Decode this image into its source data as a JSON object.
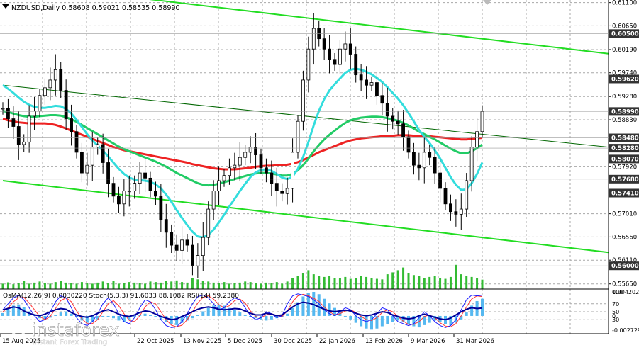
{
  "header": {
    "symbol_line": "NZDUSD,Daily  0.58608 0.59021 0.58535 0.58990"
  },
  "indicator_header": "OsMA(12,26,9) 0.0030220  Stoch(5,3,3) 91.6033 88.1082  RSI(14) 59.2380",
  "watermark": {
    "brand": "instaforex",
    "tagline": "Instant Forex Trading"
  },
  "price_scale": {
    "labels": [
      "0.61100",
      "0.60650",
      "0.60190",
      "0.59740",
      "0.59280",
      "0.58830",
      "0.57920",
      "0.57010",
      "0.56560",
      "0.56110",
      "0.55650"
    ]
  },
  "price_tags": [
    {
      "text": "0.60500",
      "style": "dark"
    },
    {
      "text": "0.59620",
      "style": "dark"
    },
    {
      "text": "0.58990",
      "style": "dark"
    },
    {
      "text": "0.58480",
      "style": "dark"
    },
    {
      "text": "0.58280",
      "style": "dark"
    },
    {
      "text": "0.58070",
      "style": "dark"
    },
    {
      "text": "0.57680",
      "style": "dark"
    },
    {
      "text": "0.57410",
      "style": "dark"
    },
    {
      "text": "0.56000",
      "style": "dark"
    }
  ],
  "indicator_scale": {
    "labels": [
      "0.004202",
      "100",
      "70",
      "50",
      "30",
      "0",
      "-0.002729"
    ]
  },
  "time_axis": {
    "labels": [
      "15 Aug 2025",
      "22 Oct 2025",
      "13 Nov 2025",
      "5 Dec 2025",
      "30 Dec 2025",
      "22 Jan 2026",
      "13 Feb 2026",
      "9 Mar 2026",
      "31 Mar 2026"
    ]
  },
  "chart_data": {
    "type": "candlestick",
    "symbol": "NZDUSD",
    "timeframe": "Daily",
    "ohlc_last": {
      "open": 0.58608,
      "high": 0.59021,
      "low": 0.58535,
      "close": 0.5899
    },
    "y_range": [
      0.5555,
      0.6115
    ],
    "closes": [
      0.5905,
      0.5885,
      0.587,
      0.5835,
      0.584,
      0.589,
      0.59,
      0.593,
      0.5945,
      0.596,
      0.598,
      0.594,
      0.5885,
      0.586,
      0.582,
      0.578,
      0.5795,
      0.583,
      0.5835,
      0.58,
      0.576,
      0.5735,
      0.572,
      0.5745,
      0.5745,
      0.576,
      0.578,
      0.577,
      0.5745,
      0.5735,
      0.569,
      0.5665,
      0.564,
      0.563,
      0.565,
      0.564,
      0.56,
      0.562,
      0.5655,
      0.571,
      0.5745,
      0.5765,
      0.5775,
      0.579,
      0.5795,
      0.581,
      0.582,
      0.583,
      0.5815,
      0.579,
      0.578,
      0.576,
      0.5745,
      0.574,
      0.575,
      0.582,
      0.588,
      0.596,
      0.602,
      0.606,
      0.604,
      0.602,
      0.6,
      0.599,
      0.602,
      0.603,
      0.601,
      0.597,
      0.596,
      0.595,
      0.5955,
      0.593,
      0.5915,
      0.589,
      0.588,
      0.5875,
      0.585,
      0.582,
      0.5795,
      0.579,
      0.582,
      0.581,
      0.578,
      0.575,
      0.572,
      0.5705,
      0.57,
      0.571,
      0.5765,
      0.583,
      0.586,
      0.5899
    ],
    "moving_averages": [
      {
        "color": "#ee2222",
        "values": [
          0.5885,
          0.5882,
          0.588,
          0.5878,
          0.5877,
          0.5876,
          0.5876,
          0.5876,
          0.5876,
          0.5875,
          0.5873,
          0.587,
          0.5866,
          0.5862,
          0.5858,
          0.5854,
          0.585,
          0.5846,
          0.5842,
          0.5838,
          0.5834,
          0.583,
          0.5827,
          0.5824,
          0.5822,
          0.582,
          0.5818,
          0.5816,
          0.5814,
          0.5812,
          0.581,
          0.5808,
          0.5806,
          0.5804,
          0.5802,
          0.58,
          0.5797,
          0.5795,
          0.5793,
          0.5791,
          0.5789,
          0.5788,
          0.5787,
          0.5787,
          0.5787,
          0.5788,
          0.5789,
          0.579,
          0.5792,
          0.5793,
          0.5794,
          0.5794,
          0.5795,
          0.5795,
          0.5796,
          0.5798,
          0.5801,
          0.5805,
          0.581,
          0.5815,
          0.582,
          0.5824,
          0.5828,
          0.5832,
          0.5836,
          0.584,
          0.5843,
          0.5845,
          0.5847,
          0.5848,
          0.5849,
          0.585,
          0.5851,
          0.5852,
          0.5852,
          0.5853,
          0.5853,
          0.5853,
          0.5852,
          0.5852,
          0.5852,
          0.5851,
          0.585,
          0.5849,
          0.5848,
          0.5847,
          0.5846,
          0.5845,
          0.5845,
          0.5846,
          0.5847,
          0.5848
        ]
      },
      {
        "color": "#22cc66",
        "values": [
          0.59,
          0.5898,
          0.5895,
          0.5892,
          0.589,
          0.5889,
          0.5889,
          0.589,
          0.5891,
          0.5892,
          0.5892,
          0.5891,
          0.5888,
          0.5884,
          0.5879,
          0.5873,
          0.5867,
          0.5861,
          0.5855,
          0.5849,
          0.5843,
          0.5837,
          0.5831,
          0.5826,
          0.5822,
          0.5818,
          0.5814,
          0.581,
          0.5806,
          0.5802,
          0.5797,
          0.5792,
          0.5786,
          0.578,
          0.5775,
          0.577,
          0.5765,
          0.576,
          0.5757,
          0.5756,
          0.5757,
          0.5759,
          0.5762,
          0.5765,
          0.5768,
          0.5771,
          0.5774,
          0.5777,
          0.5779,
          0.578,
          0.578,
          0.5779,
          0.5777,
          0.5775,
          0.5775,
          0.5778,
          0.5785,
          0.5795,
          0.5808,
          0.5822,
          0.5834,
          0.5845,
          0.5854,
          0.5862,
          0.587,
          0.5877,
          0.5882,
          0.5885,
          0.5887,
          0.5888,
          0.5889,
          0.5889,
          0.5888,
          0.5886,
          0.5884,
          0.5881,
          0.5877,
          0.5872,
          0.5866,
          0.586,
          0.5855,
          0.585,
          0.5845,
          0.5839,
          0.5833,
          0.5827,
          0.5822,
          0.5818,
          0.5818,
          0.5822,
          0.5828,
          0.5835
        ]
      },
      {
        "color": "#33dddd",
        "values": [
          0.595,
          0.5943,
          0.5935,
          0.5926,
          0.5918,
          0.5912,
          0.5908,
          0.5906,
          0.5906,
          0.5908,
          0.591,
          0.5909,
          0.5904,
          0.5895,
          0.5883,
          0.5869,
          0.5855,
          0.5843,
          0.5833,
          0.5823,
          0.5812,
          0.58,
          0.5788,
          0.5778,
          0.5771,
          0.5767,
          0.5766,
          0.5765,
          0.5763,
          0.5758,
          0.575,
          0.5738,
          0.5724,
          0.5708,
          0.5693,
          0.5679,
          0.5666,
          0.5657,
          0.5655,
          0.566,
          0.567,
          0.5684,
          0.5699,
          0.5715,
          0.573,
          0.5745,
          0.5759,
          0.5772,
          0.5781,
          0.5786,
          0.5787,
          0.5784,
          0.5778,
          0.5771,
          0.5768,
          0.5773,
          0.5788,
          0.5811,
          0.584,
          0.5872,
          0.59,
          0.5923,
          0.594,
          0.5952,
          0.5963,
          0.5974,
          0.598,
          0.5982,
          0.598,
          0.5976,
          0.5971,
          0.5964,
          0.5956,
          0.5946,
          0.5935,
          0.5924,
          0.5911,
          0.5896,
          0.588,
          0.5863,
          0.585,
          0.5838,
          0.5824,
          0.5808,
          0.579,
          0.5772,
          0.5757,
          0.5747,
          0.5748,
          0.576,
          0.5778,
          0.58
        ]
      }
    ],
    "trend_lines": [
      {
        "color": "#22dd22",
        "from": [
          0,
          0.615
        ],
        "to": [
          91,
          0.604
        ]
      },
      {
        "color": "#22dd22",
        "from": [
          0,
          0.5765
        ],
        "to": [
          91,
          0.5655
        ]
      },
      {
        "color": "#006600",
        "from": [
          0,
          0.595
        ],
        "to": [
          91,
          0.5855
        ]
      }
    ],
    "volume": [
      0.2,
      0.25,
      0.18,
      0.22,
      0.3,
      0.2,
      0.24,
      0.28,
      0.22,
      0.2,
      0.26,
      0.3,
      0.24,
      0.22,
      0.2,
      0.26,
      0.22,
      0.2,
      0.24,
      0.28,
      0.22,
      0.3,
      0.2,
      0.22,
      0.26,
      0.24,
      0.22,
      0.2,
      0.28,
      0.26,
      0.24,
      0.3,
      0.28,
      0.32,
      0.26,
      0.24,
      0.4,
      0.36,
      0.3,
      0.28,
      0.24,
      0.22,
      0.26,
      0.2,
      0.22,
      0.24,
      0.28,
      0.26,
      0.22,
      0.2,
      0.24,
      0.22,
      0.26,
      0.2,
      0.28,
      0.4,
      0.5,
      0.6,
      0.7,
      0.55,
      0.5,
      0.45,
      0.5,
      0.42,
      0.4,
      0.45,
      0.38,
      0.42,
      0.5,
      0.45,
      0.4,
      0.38,
      0.36,
      0.55,
      0.62,
      0.7,
      0.8,
      0.6,
      0.52,
      0.48,
      0.4,
      0.45,
      0.5,
      0.42,
      0.38,
      0.45,
      0.9,
      0.55,
      0.48,
      0.45,
      0.4,
      0.35
    ],
    "osma": [
      0.0005,
      0.0012,
      0.0018,
      0.002,
      0.0015,
      0.0008,
      0.0002,
      -0.0004,
      -0.0006,
      -0.0003,
      0.0002,
      0.0006,
      0.0008,
      0.0004,
      -0.0002,
      -0.0008,
      -0.0012,
      -0.001,
      -0.0006,
      -0.0002,
      0.0,
      -0.0004,
      -0.0008,
      -0.001,
      -0.0006,
      -0.0002,
      0.0002,
      0.0004,
      0.0002,
      -0.0002,
      -0.0006,
      -0.001,
      -0.0014,
      -0.0016,
      -0.0012,
      -0.0008,
      -0.0004,
      0.0002,
      0.0008,
      0.0014,
      0.0018,
      0.002,
      0.0018,
      0.0014,
      0.001,
      0.0006,
      0.0002,
      -0.0002,
      -0.0004,
      -0.0006,
      -0.0008,
      -0.0006,
      -0.0004,
      -0.0002,
      0.0004,
      0.0014,
      0.0024,
      0.0034,
      0.004,
      0.0042,
      0.0038,
      0.003,
      0.0022,
      0.0014,
      0.0006,
      0.0,
      -0.0006,
      -0.0012,
      -0.0018,
      -0.0022,
      -0.0024,
      -0.0022,
      -0.0018,
      -0.0014,
      -0.001,
      -0.0008,
      -0.001,
      -0.0014,
      -0.0018,
      -0.002,
      -0.0016,
      -0.0012,
      -0.0008,
      -0.001,
      -0.0014,
      -0.0016,
      -0.0012,
      -0.0006,
      0.0006,
      0.0018,
      0.0026,
      0.003
    ],
    "stoch_main": [
      55,
      70,
      85,
      92,
      80,
      60,
      40,
      25,
      30,
      50,
      75,
      90,
      85,
      60,
      35,
      20,
      15,
      25,
      45,
      70,
      85,
      70,
      45,
      25,
      20,
      35,
      60,
      80,
      75,
      55,
      30,
      15,
      10,
      12,
      25,
      45,
      70,
      88,
      92,
      85,
      70,
      55,
      60,
      75,
      85,
      80,
      60,
      40,
      30,
      35,
      50,
      45,
      35,
      40,
      70,
      90,
      95,
      92,
      88,
      80,
      70,
      55,
      45,
      40,
      50,
      60,
      55,
      40,
      30,
      25,
      30,
      45,
      60,
      55,
      40,
      25,
      20,
      15,
      20,
      35,
      50,
      40,
      25,
      15,
      10,
      15,
      30,
      55,
      80,
      92,
      90,
      91.6
    ],
    "stoch_signal": [
      50,
      60,
      75,
      85,
      86,
      72,
      55,
      38,
      30,
      38,
      58,
      78,
      85,
      75,
      52,
      32,
      20,
      20,
      30,
      50,
      70,
      78,
      65,
      45,
      28,
      25,
      40,
      62,
      75,
      70,
      50,
      30,
      16,
      12,
      16,
      30,
      50,
      72,
      86,
      90,
      82,
      68,
      60,
      65,
      78,
      82,
      72,
      52,
      38,
      35,
      42,
      45,
      40,
      38,
      52,
      75,
      90,
      94,
      90,
      84,
      76,
      62,
      50,
      42,
      45,
      52,
      55,
      48,
      38,
      30,
      28,
      35,
      48,
      55,
      50,
      38,
      26,
      18,
      18,
      25,
      38,
      42,
      35,
      22,
      14,
      12,
      20,
      40,
      62,
      82,
      90,
      88.1
    ],
    "rsi": [
      55,
      58,
      62,
      60,
      52,
      46,
      42,
      40,
      44,
      50,
      55,
      58,
      56,
      48,
      42,
      38,
      36,
      40,
      46,
      52,
      55,
      50,
      44,
      40,
      38,
      42,
      48,
      52,
      50,
      44,
      38,
      34,
      30,
      32,
      38,
      44,
      50,
      56,
      60,
      62,
      60,
      56,
      55,
      56,
      58,
      57,
      52,
      46,
      42,
      42,
      46,
      44,
      40,
      42,
      52,
      62,
      70,
      74,
      72,
      68,
      62,
      56,
      52,
      50,
      52,
      54,
      52,
      46,
      42,
      40,
      42,
      46,
      50,
      48,
      42,
      38,
      34,
      32,
      34,
      40,
      44,
      40,
      36,
      32,
      30,
      34,
      42,
      50,
      56,
      60,
      58,
      59.2
    ]
  },
  "colors": {
    "grid": "#a8a8a8",
    "candle": "#000000",
    "osma_bars": "#55b8f0",
    "stoch_main": "#1a1aff",
    "stoch_signal": "#ff3333",
    "rsi": "#000099",
    "volume": "#33bb33",
    "trend_line": "#22dd22",
    "tag_dark": "#333333",
    "tag_text": "#ffffff"
  }
}
